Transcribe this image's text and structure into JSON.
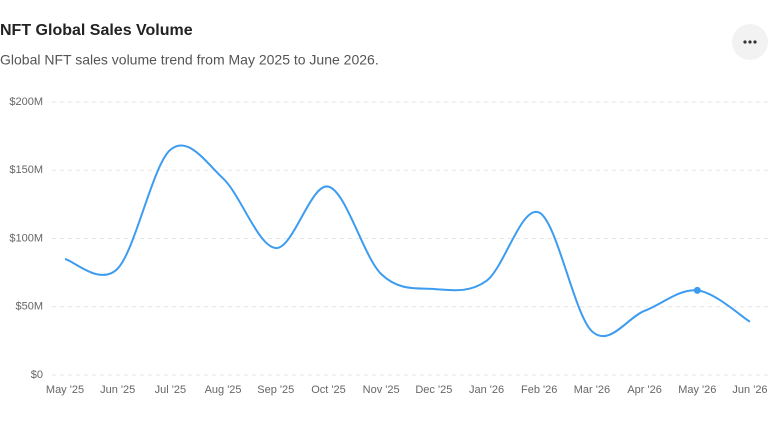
{
  "chart_data": {
    "type": "line",
    "title": "NFT Global Sales Volume",
    "subtitle": "Global NFT sales volume trend from May 2025 to June 2026.",
    "categories": [
      "May '25",
      "Jun '25",
      "Jul '25",
      "Aug '25",
      "Sep '25",
      "Oct '25",
      "Nov '25",
      "Dec '25",
      "Jan '26",
      "Feb '26",
      "Mar '26",
      "Apr '26",
      "May '26",
      "Jun '26"
    ],
    "series": [
      {
        "name": "Sales Volume",
        "color": "#3d9cf0",
        "values": [
          85,
          78,
          165,
          144,
          93,
          138,
          74,
          63,
          69,
          119,
          32,
          47,
          62,
          39
        ]
      }
    ],
    "highlighted_point": 12,
    "ylim": [
      0,
      200
    ],
    "yticks": [
      {
        "value": 0,
        "label": "$0"
      },
      {
        "value": 50,
        "label": "$50M"
      },
      {
        "value": 100,
        "label": "$100M"
      },
      {
        "value": 150,
        "label": "$150M"
      },
      {
        "value": 200,
        "label": "$200M"
      }
    ],
    "grid": true
  }
}
